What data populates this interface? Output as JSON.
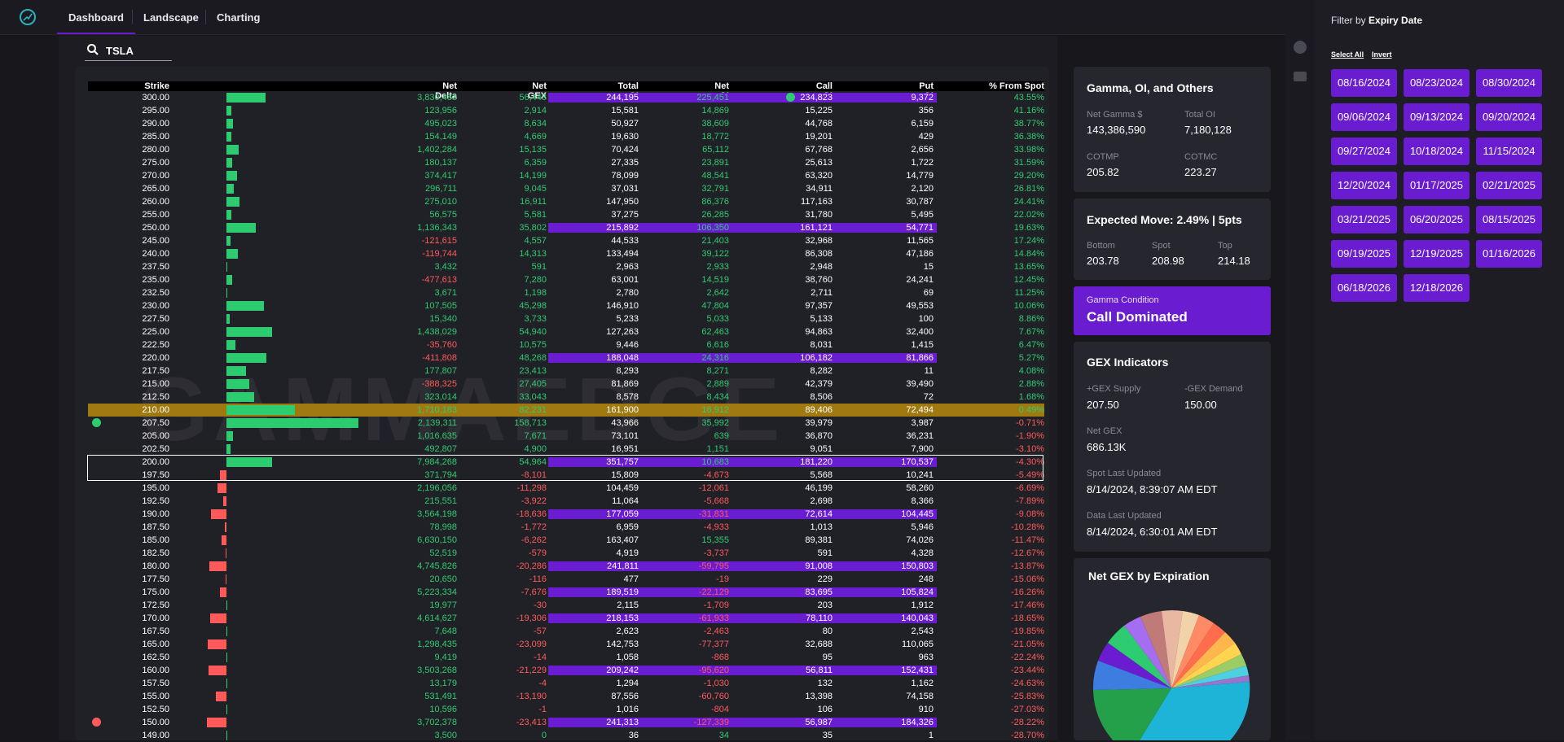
{
  "nav": {
    "tabs": [
      "Dashboard",
      "Landscape",
      "Charting"
    ]
  },
  "search": {
    "value": "TSLA"
  },
  "table": {
    "headers": [
      "Strike",
      "Net Delta",
      "Net GEX",
      "Total OI",
      "Net OI",
      "Call OI",
      "Put OI",
      "% From Spot"
    ],
    "rows": [
      {
        "strike": "300.00",
        "nd": "3,830,483",
        "ng": "56,448",
        "tot": "244,195",
        "noi": "225,451",
        "call": "234,823",
        "put": "9,372",
        "pct": "43.55%",
        "bar": 48,
        "hl": [
          "tot",
          "noi",
          "call",
          "put"
        ],
        "dot": true
      },
      {
        "strike": "295.00",
        "nd": "123,956",
        "ng": "2,914",
        "tot": "15,581",
        "noi": "14,869",
        "call": "15,225",
        "put": "356",
        "pct": "41.16%",
        "bar": 6
      },
      {
        "strike": "290.00",
        "nd": "495,023",
        "ng": "8,634",
        "tot": "50,927",
        "noi": "38,609",
        "call": "44,768",
        "put": "6,159",
        "pct": "38.77%",
        "bar": 8
      },
      {
        "strike": "285.00",
        "nd": "154,149",
        "ng": "4,669",
        "tot": "19,630",
        "noi": "18,772",
        "call": "19,201",
        "put": "429",
        "pct": "36.38%",
        "bar": 6
      },
      {
        "strike": "280.00",
        "nd": "1,402,284",
        "ng": "15,135",
        "tot": "70,424",
        "noi": "65,112",
        "call": "67,768",
        "put": "2,656",
        "pct": "33.98%",
        "bar": 15
      },
      {
        "strike": "275.00",
        "nd": "180,137",
        "ng": "6,359",
        "tot": "27,335",
        "noi": "23,891",
        "call": "25,613",
        "put": "1,722",
        "pct": "31.59%",
        "bar": 7
      },
      {
        "strike": "270.00",
        "nd": "374,417",
        "ng": "14,199",
        "tot": "78,099",
        "noi": "48,541",
        "call": "63,320",
        "put": "14,779",
        "pct": "29.20%",
        "bar": 13
      },
      {
        "strike": "265.00",
        "nd": "296,711",
        "ng": "9,045",
        "tot": "37,031",
        "noi": "32,791",
        "call": "34,911",
        "put": "2,120",
        "pct": "26.81%",
        "bar": 9
      },
      {
        "strike": "260.00",
        "nd": "275,010",
        "ng": "16,911",
        "tot": "147,950",
        "noi": "86,376",
        "call": "117,163",
        "put": "30,787",
        "pct": "24.41%",
        "bar": 16
      },
      {
        "strike": "255.00",
        "nd": "56,575",
        "ng": "5,581",
        "tot": "37,275",
        "noi": "26,285",
        "call": "31,780",
        "put": "5,495",
        "pct": "22.02%",
        "bar": 6
      },
      {
        "strike": "250.00",
        "nd": "1,136,343",
        "ng": "35,802",
        "tot": "215,892",
        "noi": "106,350",
        "call": "161,121",
        "put": "54,771",
        "pct": "19.63%",
        "bar": 36,
        "hl": [
          "tot",
          "noi",
          "call",
          "put"
        ]
      },
      {
        "strike": "245.00",
        "nd": "-121,615",
        "ng": "4,557",
        "tot": "44,533",
        "noi": "21,403",
        "call": "32,968",
        "put": "11,565",
        "pct": "17.24%",
        "bar": 5
      },
      {
        "strike": "240.00",
        "nd": "-119,744",
        "ng": "14,313",
        "tot": "133,494",
        "noi": "39,122",
        "call": "86,308",
        "put": "47,186",
        "pct": "14.84%",
        "bar": 14
      },
      {
        "strike": "237.50",
        "nd": "3,432",
        "ng": "591",
        "tot": "2,963",
        "noi": "2,933",
        "call": "2,948",
        "put": "15",
        "pct": "13.65%",
        "bar": 1
      },
      {
        "strike": "235.00",
        "nd": "-477,613",
        "ng": "7,280",
        "tot": "63,001",
        "noi": "14,519",
        "call": "38,760",
        "put": "24,241",
        "pct": "12.45%",
        "bar": 7
      },
      {
        "strike": "232.50",
        "nd": "3,671",
        "ng": "1,198",
        "tot": "2,780",
        "noi": "2,642",
        "call": "2,711",
        "put": "69",
        "pct": "11.25%",
        "bar": 1
      },
      {
        "strike": "230.00",
        "nd": "107,505",
        "ng": "45,298",
        "tot": "146,910",
        "noi": "47,804",
        "call": "97,357",
        "put": "49,553",
        "pct": "10.06%",
        "bar": 46
      },
      {
        "strike": "227.50",
        "nd": "15,340",
        "ng": "3,733",
        "tot": "5,233",
        "noi": "5,033",
        "call": "5,133",
        "put": "100",
        "pct": "8.86%",
        "bar": 4
      },
      {
        "strike": "225.00",
        "nd": "1,438,029",
        "ng": "54,940",
        "tot": "127,263",
        "noi": "62,463",
        "call": "94,863",
        "put": "32,400",
        "pct": "7.67%",
        "bar": 56
      },
      {
        "strike": "222.50",
        "nd": "-35,760",
        "ng": "10,575",
        "tot": "9,446",
        "noi": "6,616",
        "call": "8,031",
        "put": "1,415",
        "pct": "6.47%",
        "bar": 11
      },
      {
        "strike": "220.00",
        "nd": "-411,808",
        "ng": "48,268",
        "tot": "188,048",
        "noi": "24,316",
        "call": "106,182",
        "put": "81,866",
        "pct": "5.27%",
        "bar": 49,
        "hl": [
          "tot",
          "noi",
          "call",
          "put"
        ]
      },
      {
        "strike": "217.50",
        "nd": "177,807",
        "ng": "23,413",
        "tot": "8,293",
        "noi": "8,271",
        "call": "8,282",
        "put": "11",
        "pct": "4.08%",
        "bar": 24
      },
      {
        "strike": "215.00",
        "nd": "-388,325",
        "ng": "27,405",
        "tot": "81,869",
        "noi": "2,889",
        "call": "42,379",
        "put": "39,490",
        "pct": "2.88%",
        "bar": 28
      },
      {
        "strike": "212.50",
        "nd": "323,014",
        "ng": "33,043",
        "tot": "8,578",
        "noi": "8,434",
        "call": "8,506",
        "put": "72",
        "pct": "1.68%",
        "bar": 34
      },
      {
        "strike": "210.00",
        "nd": "1,710,183",
        "ng": "82,231",
        "tot": "161,900",
        "noi": "16,912",
        "call": "89,406",
        "put": "72,494",
        "pct": "0.49%",
        "bar": 84,
        "gold": true
      },
      {
        "strike": "207.50",
        "nd": "2,139,311",
        "ng": "158,713",
        "tot": "43,966",
        "noi": "35,992",
        "call": "39,979",
        "put": "3,987",
        "pct": "-0.71%",
        "bar": 162,
        "gdot": true
      },
      {
        "strike": "205.00",
        "nd": "1,016,635",
        "ng": "7,671",
        "tot": "73,101",
        "noi": "639",
        "call": "36,870",
        "put": "36,231",
        "pct": "-1.90%",
        "bar": 8
      },
      {
        "strike": "202.50",
        "nd": "492,807",
        "ng": "4,900",
        "tot": "16,951",
        "noi": "1,151",
        "call": "9,051",
        "put": "7,900",
        "pct": "-3.10%",
        "bar": 5
      },
      {
        "strike": "200.00",
        "nd": "7,984,268",
        "ng": "54,964",
        "tot": "351,757",
        "noi": "10,683",
        "call": "181,220",
        "put": "170,537",
        "pct": "-4.30%",
        "bar": 56,
        "hl": [
          "tot",
          "noi",
          "call",
          "put"
        ],
        "box": "top"
      },
      {
        "strike": "197.50",
        "nd": "371,794",
        "ng": "-8,101",
        "tot": "15,809",
        "noi": "-4,673",
        "call": "5,568",
        "put": "10,241",
        "pct": "-5.49%",
        "bar": -8,
        "box": "bottom"
      },
      {
        "strike": "195.00",
        "nd": "2,196,056",
        "ng": "-11,298",
        "tot": "104,459",
        "noi": "-12,061",
        "call": "46,199",
        "put": "58,260",
        "pct": "-6.69%",
        "bar": -11
      },
      {
        "strike": "192.50",
        "nd": "215,551",
        "ng": "-3,922",
        "tot": "11,064",
        "noi": "-5,668",
        "call": "2,698",
        "put": "8,366",
        "pct": "-7.89%",
        "bar": -4
      },
      {
        "strike": "190.00",
        "nd": "3,564,198",
        "ng": "-18,636",
        "tot": "177,059",
        "noi": "-31,831",
        "call": "72,614",
        "put": "104,445",
        "pct": "-9.08%",
        "bar": -19,
        "hl": [
          "tot",
          "put"
        ]
      },
      {
        "strike": "187.50",
        "nd": "78,998",
        "ng": "-1,772",
        "tot": "6,959",
        "noi": "-4,933",
        "call": "1,013",
        "put": "5,946",
        "pct": "-10.28%",
        "bar": -2
      },
      {
        "strike": "185.00",
        "nd": "6,630,150",
        "ng": "-6,262",
        "tot": "163,407",
        "noi": "15,355",
        "call": "89,381",
        "put": "74,026",
        "pct": "-11.47%",
        "bar": -6
      },
      {
        "strike": "182.50",
        "nd": "52,519",
        "ng": "-579",
        "tot": "4,919",
        "noi": "-3,737",
        "call": "591",
        "put": "4,328",
        "pct": "-12.67%",
        "bar": -1
      },
      {
        "strike": "180.00",
        "nd": "4,745,826",
        "ng": "-20,286",
        "tot": "241,811",
        "noi": "-59,795",
        "call": "91,008",
        "put": "150,803",
        "pct": "-13.87%",
        "bar": -21,
        "hl": [
          "tot",
          "noi",
          "call",
          "put"
        ]
      },
      {
        "strike": "177.50",
        "nd": "20,650",
        "ng": "-116",
        "tot": "477",
        "noi": "-19",
        "call": "229",
        "put": "248",
        "pct": "-15.06%",
        "bar": -1
      },
      {
        "strike": "175.00",
        "nd": "5,223,334",
        "ng": "-7,676",
        "tot": "189,519",
        "noi": "-22,129",
        "call": "83,695",
        "put": "105,824",
        "pct": "-16.26%",
        "bar": -8,
        "hl": [
          "tot",
          "put"
        ]
      },
      {
        "strike": "172.50",
        "nd": "19,977",
        "ng": "-30",
        "tot": "2,115",
        "noi": "-1,709",
        "call": "203",
        "put": "1,912",
        "pct": "-17.46%",
        "bar": 0
      },
      {
        "strike": "170.00",
        "nd": "4,614,627",
        "ng": "-19,306",
        "tot": "218,153",
        "noi": "-61,933",
        "call": "78,110",
        "put": "140,043",
        "pct": "-18.65%",
        "bar": -20,
        "hl": [
          "tot",
          "noi",
          "call",
          "put"
        ]
      },
      {
        "strike": "167.50",
        "nd": "7,648",
        "ng": "-57",
        "tot": "2,623",
        "noi": "-2,463",
        "call": "80",
        "put": "2,543",
        "pct": "-19.85%",
        "bar": 0
      },
      {
        "strike": "165.00",
        "nd": "1,298,435",
        "ng": "-23,099",
        "tot": "142,753",
        "noi": "-77,377",
        "call": "32,688",
        "put": "110,065",
        "pct": "-21.05%",
        "bar": -23
      },
      {
        "strike": "162.50",
        "nd": "9,419",
        "ng": "-14",
        "tot": "1,058",
        "noi": "-868",
        "call": "95",
        "put": "963",
        "pct": "-22.24%",
        "bar": 0
      },
      {
        "strike": "160.00",
        "nd": "3,503,268",
        "ng": "-21,229",
        "tot": "209,242",
        "noi": "-95,620",
        "call": "56,811",
        "put": "152,431",
        "pct": "-23.44%",
        "bar": -22,
        "hl": [
          "tot",
          "noi",
          "call",
          "put"
        ]
      },
      {
        "strike": "157.50",
        "nd": "13,179",
        "ng": "-4",
        "tot": "1,294",
        "noi": "-1,030",
        "call": "132",
        "put": "1,162",
        "pct": "-24.63%",
        "bar": 0
      },
      {
        "strike": "155.00",
        "nd": "531,491",
        "ng": "-13,190",
        "tot": "87,556",
        "noi": "-60,760",
        "call": "13,398",
        "put": "74,158",
        "pct": "-25.83%",
        "bar": -13
      },
      {
        "strike": "152.50",
        "nd": "10,596",
        "ng": "-1",
        "tot": "1,016",
        "noi": "-804",
        "call": "106",
        "put": "910",
        "pct": "-27.03%",
        "bar": 0
      },
      {
        "strike": "150.00",
        "nd": "3,702,378",
        "ng": "-23,413",
        "tot": "241,313",
        "noi": "-127,339",
        "call": "56,987",
        "put": "184,326",
        "pct": "-28.22%",
        "bar": -24,
        "hl": [
          "tot",
          "noi",
          "call",
          "put"
        ],
        "rdot": true
      },
      {
        "strike": "149.00",
        "nd": "3,500",
        "ng": "0",
        "tot": "36",
        "noi": "34",
        "call": "35",
        "put": "1",
        "pct": "-28.70%",
        "bar": 0
      }
    ]
  },
  "watermark": "GAMMAEDGE",
  "gamma": {
    "title": "Gamma, OI, and Others",
    "net_gamma_label": "Net Gamma $",
    "net_gamma": "143,386,590",
    "total_oi_label": "Total OI",
    "total_oi": "7,180,128",
    "cotmp_label": "COTMP",
    "cotmp": "205.82",
    "cotmc_label": "COTMC",
    "cotmc": "223.27"
  },
  "expected": {
    "title": "Expected Move: 2.49% | 5pts",
    "bottom_label": "Bottom",
    "bottom": "203.78",
    "spot_label": "Spot",
    "spot": "208.98",
    "top_label": "Top",
    "top": "214.18"
  },
  "condition": {
    "label": "Gamma Condition",
    "value": "Call Dominated"
  },
  "gex": {
    "title": "GEX Indicators",
    "supply_label": "+GEX Supply",
    "supply": "207.50",
    "demand_label": "-GEX Demand",
    "demand": "150.00",
    "net_label": "Net GEX",
    "net": "686.13K",
    "spot_upd_label": "Spot Last Updated",
    "spot_upd": "8/14/2024, 8:39:07 AM EDT",
    "data_upd_label": "Data Last Updated",
    "data_upd": "8/14/2024, 6:30:01 AM EDT"
  },
  "pie": {
    "title": "Net GEX by Expiration"
  },
  "filter": {
    "title_prefix": "Filter by",
    "title_bold": "Expiry Date",
    "select_all": "Select All",
    "invert": "Invert",
    "dates": [
      "08/16/2024",
      "08/23/2024",
      "08/30/2024",
      "09/06/2024",
      "09/13/2024",
      "09/20/2024",
      "09/27/2024",
      "10/18/2024",
      "11/15/2024",
      "12/20/2024",
      "01/17/2025",
      "02/21/2025",
      "03/21/2025",
      "06/20/2025",
      "08/15/2025",
      "09/19/2025",
      "12/19/2025",
      "01/16/2026",
      "06/18/2026",
      "12/18/2026"
    ]
  },
  "colors": {
    "accent": "#6a1cd1",
    "positive": "#2ecc71",
    "negative": "#ff5a5a",
    "gold": "#a07a10",
    "pie_main": "#1eb4d8"
  }
}
